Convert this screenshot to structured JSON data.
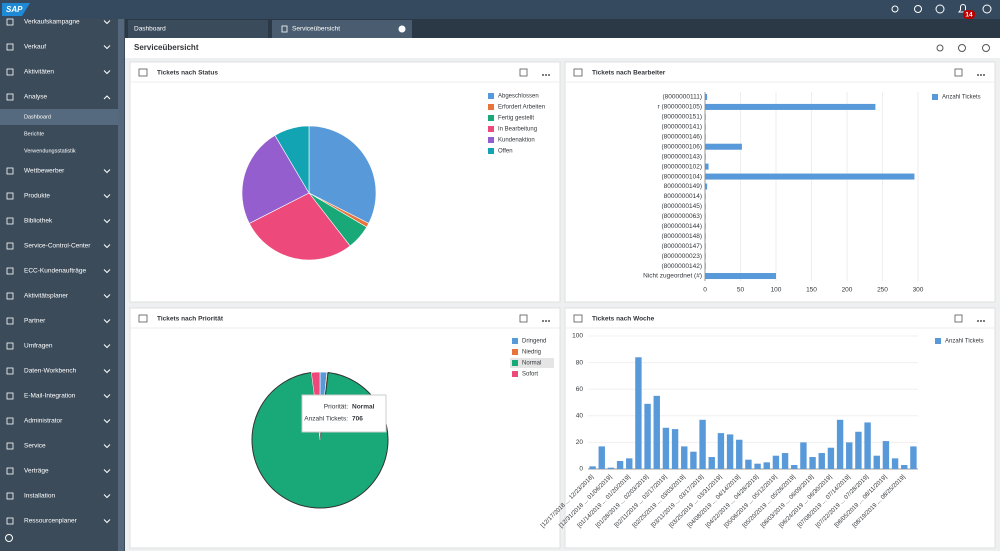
{
  "shell": {
    "logo": "SAP",
    "badge": "14"
  },
  "sidebar": {
    "items": [
      "Verkaufskampagne",
      "Verkauf",
      "Aktivitäten",
      "Analyse",
      "Wettbewerber",
      "Produkte",
      "Bibliothek",
      "Service-Control-Center",
      "ECC-Kundenaufträge",
      "Aktivitätsplaner",
      "Partner",
      "Umfragen",
      "Daten-Workbench",
      "E-Mail-Integration",
      "Administrator",
      "Service",
      "Verträge",
      "Installation",
      "Ressourcenplaner"
    ],
    "subitems": [
      "Dashboard",
      "Berichte",
      "Verwendungsstatistik"
    ]
  },
  "tabs": [
    "Dashboard",
    "Serviceübersicht"
  ],
  "page_title": "Serviceübersicht",
  "chart_data": [
    {
      "type": "pie",
      "title": "Tickets nach Status",
      "categories": [
        "Abgeschlossen",
        "Erfordert Arbeiten",
        "Fertig gestellt",
        "In Bearbeitung",
        "Kundenaktion",
        "Offen"
      ],
      "values": [
        32.5,
        1,
        6,
        28,
        24,
        8.5
      ],
      "colors": [
        "#5899da",
        "#e8743b",
        "#19a979",
        "#ed4a7b",
        "#945ecf",
        "#13a4b4"
      ]
    },
    {
      "type": "bar",
      "horizontal": true,
      "title": "Tickets nach Bearbeiter",
      "categories": [
        "(8000000111)",
        "r (8000000105)",
        "(8000000151)",
        "(8000000141)",
        "(8000000146)",
        "(8000000106)",
        "(8000000143)",
        "(8000000102)",
        "(8000000104)",
        "8000000149)",
        "8000000014)",
        "(8000000145)",
        "(8000000063)",
        "(8000000144)",
        "(8000000148)",
        "(8000000147)",
        "(8000000023)",
        "(8000000142)",
        "Nicht zugeordnet (#)"
      ],
      "series": [
        {
          "name": "Anzahl Tickets",
          "color": "#5899da",
          "values": [
            3,
            240,
            1,
            1,
            1,
            52,
            1,
            5,
            295,
            3,
            1,
            1,
            1,
            1,
            1,
            1,
            1,
            1,
            100
          ]
        }
      ],
      "xlim": [
        0,
        300
      ],
      "xticks": [
        0,
        50,
        100,
        150,
        200,
        250,
        300
      ],
      "grid": true
    },
    {
      "type": "pie",
      "title": "Tickets nach Priorität",
      "categories": [
        "Dringend",
        "Niedrig",
        "Normal",
        "Sofort"
      ],
      "values": [
        12,
        2,
        706,
        15
      ],
      "colors": [
        "#5899da",
        "#e8743b",
        "#19a979",
        "#ed4a7b"
      ],
      "tooltip": {
        "category_label": "Priorität:",
        "value_label": "Anzahl Tickets:"
      }
    },
    {
      "type": "bar",
      "title": "Tickets nach Woche",
      "categories": [
        "[12/17/2018 ... 12/23/2018]",
        null,
        "[12/31/2018 ... 01/06/2019]",
        null,
        "[01/14/2019 ... 01/20/2019]",
        null,
        "[01/28/2019 ... 02/03/2019]",
        null,
        "[02/11/2019 ... 02/17/2019]",
        null,
        "[02/25/2019 ... 03/03/2019]",
        null,
        "[03/11/2019 ... 03/17/2019]",
        null,
        "[03/25/2019 ... 03/31/2019]",
        null,
        "[04/08/2019 ... 04/14/2019]",
        null,
        "[04/22/2019 ... 04/28/2019]",
        null,
        "[05/06/2019 ... 05/12/2019]",
        null,
        "[05/20/2019 ... 05/26/2019]",
        null,
        "[06/03/2019 ... 06/09/2019]",
        null,
        "[06/24/2019 ... 06/30/2019]",
        null,
        "[07/08/2019 ... 07/14/2019]",
        null,
        "[07/22/2019 ... 07/28/2019]",
        null,
        "[08/05/2019 ... 08/11/2019]",
        null,
        "[08/19/2019 ... 08/25/2019]",
        null
      ],
      "series": [
        {
          "name": "Anzahl Tickets",
          "color": "#5899da",
          "values": [
            2,
            17,
            1,
            6,
            8,
            84,
            49,
            55,
            31,
            30,
            17,
            13,
            37,
            9,
            27,
            26,
            22,
            7,
            4,
            5,
            10,
            12,
            3,
            20,
            9,
            12,
            16,
            37,
            20,
            28,
            35,
            10,
            21,
            8,
            3,
            17
          ]
        }
      ],
      "ylim": [
        0,
        100
      ],
      "yticks": [
        0,
        20,
        40,
        60,
        80,
        100
      ],
      "grid": true
    }
  ]
}
